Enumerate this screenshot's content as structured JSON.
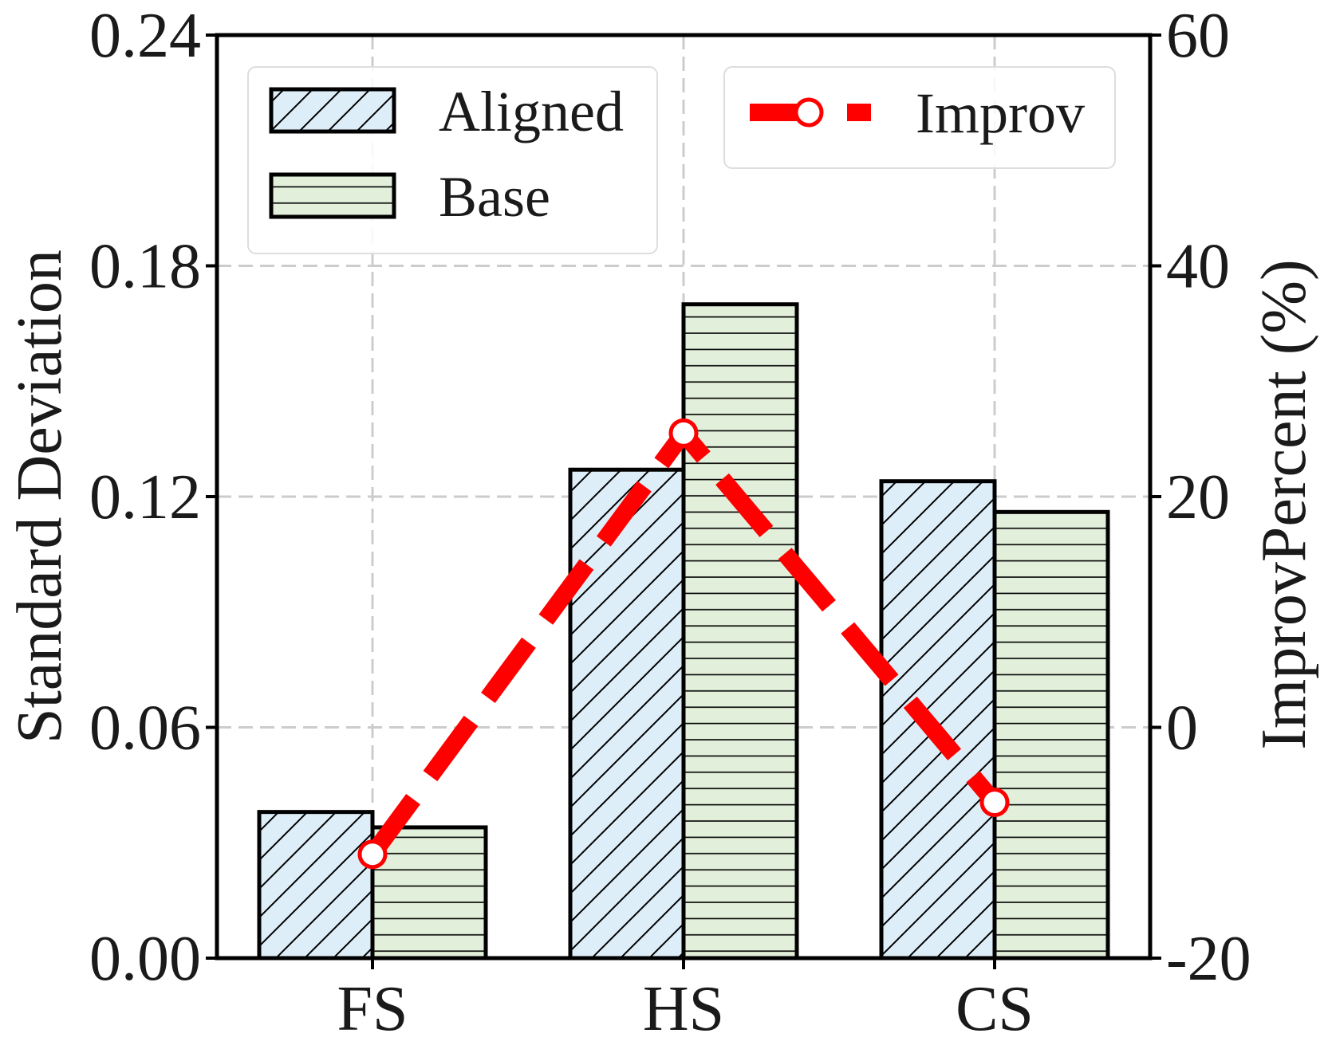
{
  "chart_data": {
    "type": "bar",
    "categories": [
      "FS",
      "HS",
      "CS"
    ],
    "series": [
      {
        "name": "Aligned",
        "values": [
          0.038,
          0.127,
          0.124
        ],
        "axis": "left",
        "fill": "#deeef8",
        "hatch": "diagonal"
      },
      {
        "name": "Base",
        "values": [
          0.034,
          0.17,
          0.116
        ],
        "axis": "left",
        "fill": "#e2efda",
        "hatch": "horizontal"
      },
      {
        "name": "Improv",
        "values": [
          -11.0,
          25.5,
          -6.5
        ],
        "axis": "right",
        "type": "line",
        "color": "#ff0000",
        "line_style": "dashed",
        "marker": "circle"
      }
    ],
    "ylabel": "Standard Deviation",
    "y2label": "ImprovPercent (%)",
    "ylim": [
      0,
      0.24
    ],
    "y2lim": [
      -20,
      60
    ],
    "yticks": [
      "0.00",
      "0.06",
      "0.12",
      "0.18",
      "0.24"
    ],
    "y2ticks": [
      "-20",
      "0",
      "20",
      "40",
      "60"
    ],
    "grid": true,
    "legend": [
      {
        "placement": "top-left",
        "entries": [
          "Aligned",
          "Base"
        ]
      },
      {
        "placement": "top-right",
        "entries": [
          "Improv"
        ]
      }
    ]
  }
}
